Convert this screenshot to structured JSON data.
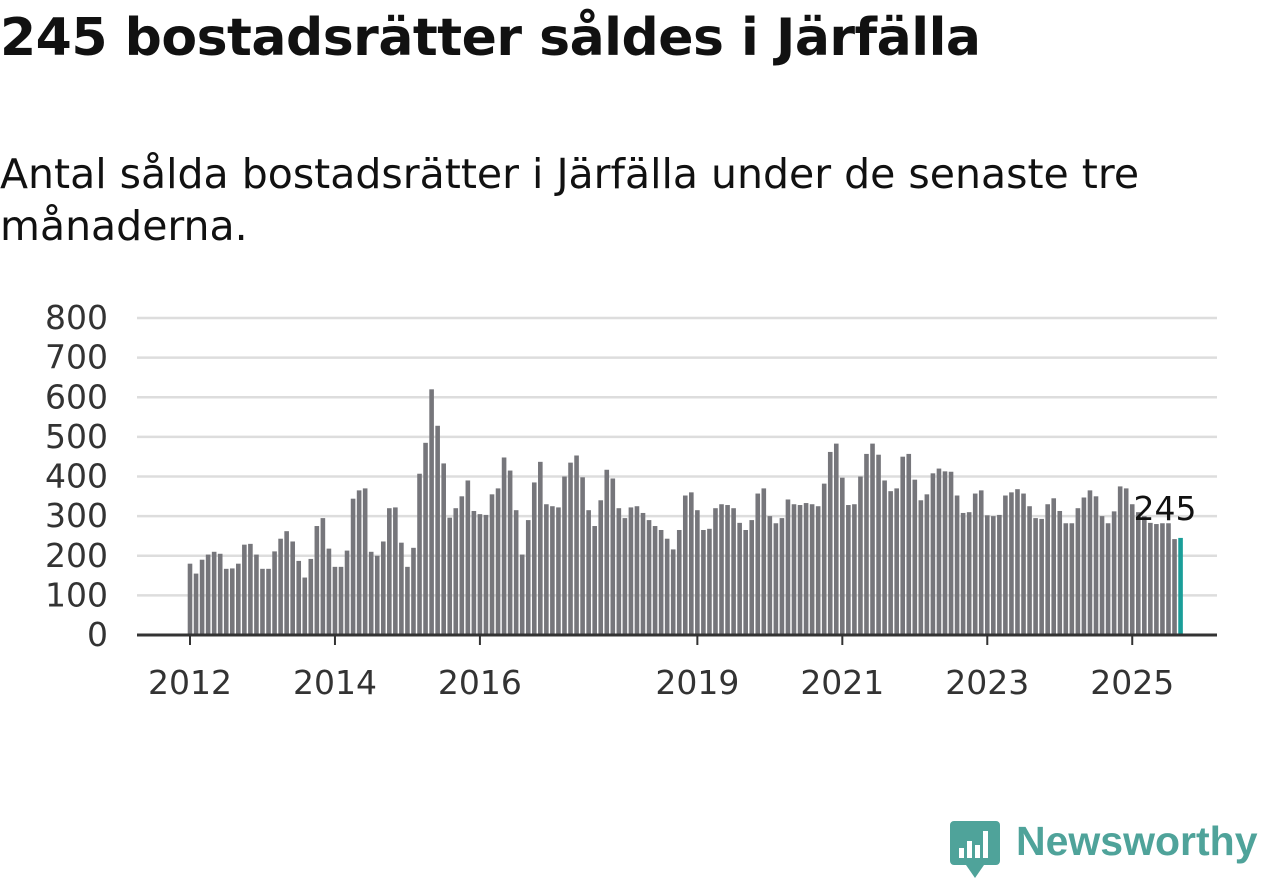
{
  "title": "245 bostadsrätter såldes i Järfälla",
  "subtitle": "Antal sålda bostadsrätter i Järfälla under de senaste tre månaderna.",
  "brand": {
    "name": "Newsworthy",
    "icon": "newsworthy-logo-icon",
    "color": "#4fa39a"
  },
  "colors": {
    "bar": "#76767b",
    "highlight": "#1a9e99",
    "grid": "#dddddd",
    "axis": "#333333"
  },
  "chart_data": {
    "type": "bar",
    "start": "2012-01",
    "ylim": [
      0,
      800
    ],
    "yticks": [
      0,
      100,
      200,
      300,
      400,
      500,
      600,
      700,
      800
    ],
    "xticks": [
      {
        "label": "2012",
        "month": "2012-01"
      },
      {
        "label": "2014",
        "month": "2014-01"
      },
      {
        "label": "2016",
        "month": "2016-01"
      },
      {
        "label": "2019",
        "month": "2019-01"
      },
      {
        "label": "2021",
        "month": "2021-01"
      },
      {
        "label": "2023",
        "month": "2023-01"
      },
      {
        "label": "2025",
        "month": "2025-01"
      }
    ],
    "last_value_label": "245",
    "values": [
      180,
      155,
      190,
      203,
      210,
      205,
      167,
      168,
      180,
      228,
      230,
      203,
      167,
      167,
      211,
      243,
      262,
      236,
      187,
      145,
      192,
      275,
      295,
      218,
      172,
      172,
      213,
      344,
      365,
      370,
      210,
      200,
      236,
      320,
      322,
      233,
      172,
      220,
      407,
      485,
      620,
      528,
      433,
      296,
      320,
      350,
      390,
      313,
      305,
      303,
      355,
      370,
      448,
      415,
      315,
      203,
      290,
      385,
      437,
      330,
      325,
      322,
      400,
      435,
      453,
      398,
      315,
      275,
      340,
      417,
      395,
      320,
      295,
      322,
      325,
      308,
      290,
      275,
      265,
      243,
      216,
      265,
      352,
      360,
      315,
      265,
      268,
      320,
      330,
      328,
      320,
      283,
      265,
      290,
      357,
      370,
      300,
      282,
      295,
      342,
      330,
      328,
      333,
      330,
      325,
      382,
      462,
      483,
      397,
      328,
      330,
      400,
      457,
      483,
      455,
      390,
      363,
      370,
      450,
      457,
      392,
      340,
      355,
      408,
      420,
      413,
      412,
      352,
      308,
      310,
      357,
      365,
      302,
      300,
      303,
      352,
      360,
      368,
      357,
      325,
      295,
      293,
      330,
      345,
      313,
      282,
      282,
      320,
      347,
      365,
      350,
      300,
      282,
      312,
      375,
      370,
      330,
      310,
      300,
      283,
      280,
      282,
      282,
      242,
      245
    ]
  }
}
